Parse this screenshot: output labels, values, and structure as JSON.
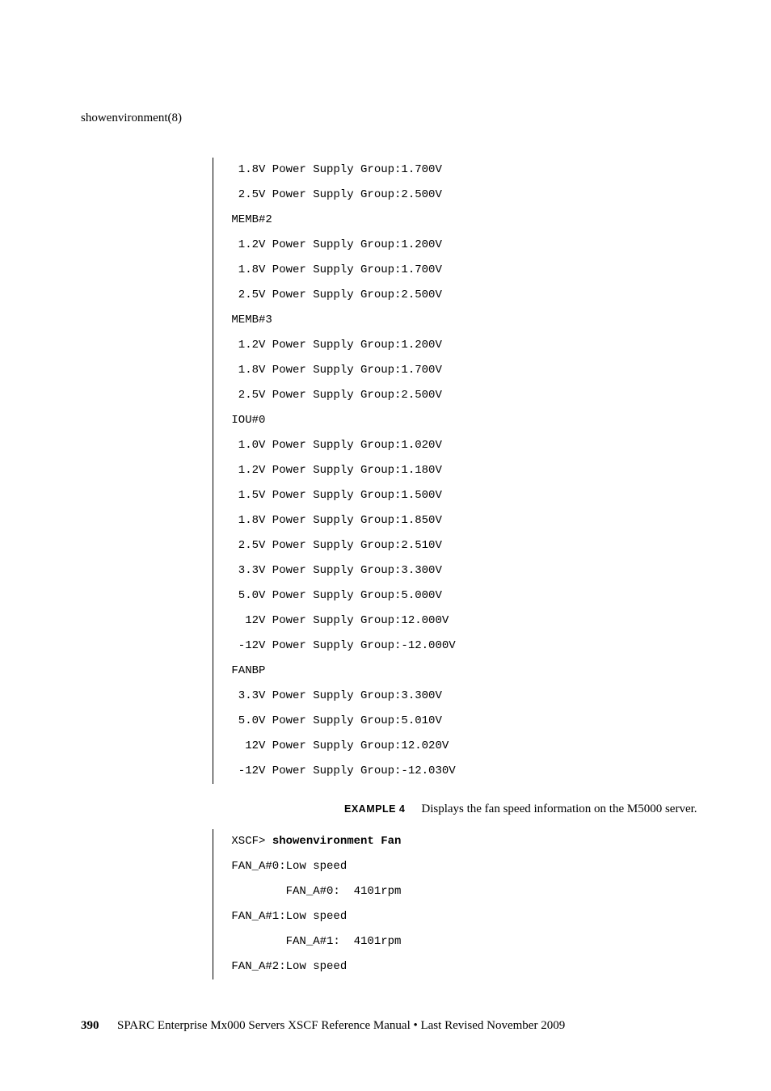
{
  "header": "showenvironment(8)",
  "code1": {
    "lines": [
      "  1.8V Power Supply Group:1.700V",
      "  2.5V Power Supply Group:2.500V",
      " MEMB#2",
      "  1.2V Power Supply Group:1.200V",
      "  1.8V Power Supply Group:1.700V",
      "  2.5V Power Supply Group:2.500V",
      " MEMB#3",
      "  1.2V Power Supply Group:1.200V",
      "  1.8V Power Supply Group:1.700V",
      "  2.5V Power Supply Group:2.500V",
      " IOU#0",
      "  1.0V Power Supply Group:1.020V",
      "  1.2V Power Supply Group:1.180V",
      "  1.5V Power Supply Group:1.500V",
      "  1.8V Power Supply Group:1.850V",
      "  2.5V Power Supply Group:2.510V",
      "  3.3V Power Supply Group:3.300V",
      "  5.0V Power Supply Group:5.000V",
      "   12V Power Supply Group:12.000V",
      "  -12V Power Supply Group:-12.000V",
      " FANBP",
      "  3.3V Power Supply Group:3.300V",
      "  5.0V Power Supply Group:5.010V",
      "   12V Power Supply Group:12.020V",
      "  -12V Power Supply Group:-12.030V"
    ]
  },
  "example": {
    "label": "EXAMPLE 4",
    "text": "Displays the fan speed information on the M5000 server."
  },
  "code2prompt": " XSCF> ",
  "code2cmd": "showenvironment Fan",
  "code2": {
    "lines": [
      " FAN_A#0:Low speed",
      "         FAN_A#0:  4101rpm",
      " FAN_A#1:Low speed",
      "         FAN_A#1:  4101rpm",
      " FAN_A#2:Low speed"
    ]
  },
  "footer": {
    "page": "390",
    "text": "SPARC Enterprise Mx000 Servers XSCF Reference Manual • Last Revised November 2009"
  }
}
